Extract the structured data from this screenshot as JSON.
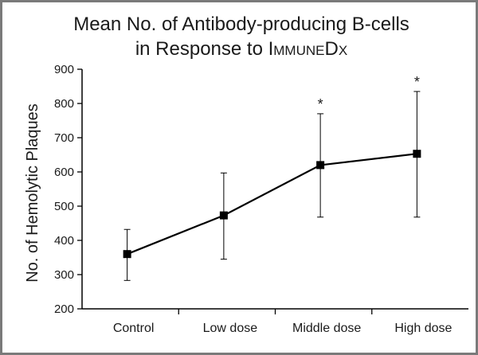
{
  "chart_data": {
    "type": "line",
    "title_line1": "Mean No. of Antibody-producing B-cells",
    "title_line2_prefix": "in Response to ",
    "title_brand": "ImmuneDx",
    "title_brand_parts": [
      {
        "text": "I",
        "small": false
      },
      {
        "text": "MMUNE",
        "small": true
      },
      {
        "text": "D",
        "small": false
      },
      {
        "text": "X",
        "small": true
      }
    ],
    "xlabel": "",
    "ylabel": "No. of Hemolytic Plaques",
    "categories": [
      "Control",
      "Low dose",
      "Middle dose",
      "High dose"
    ],
    "series": [
      {
        "values": [
          360,
          473,
          620,
          653
        ],
        "error_low": [
          283,
          345,
          468,
          468
        ],
        "error_high": [
          432,
          597,
          770,
          835
        ],
        "significance": [
          "",
          "",
          "*",
          "*"
        ]
      }
    ],
    "ylim": [
      200,
      900
    ],
    "yticks": [
      200,
      300,
      400,
      500,
      600,
      700,
      800,
      900
    ],
    "grid": false,
    "marker": "square",
    "line_color": "#000000"
  }
}
